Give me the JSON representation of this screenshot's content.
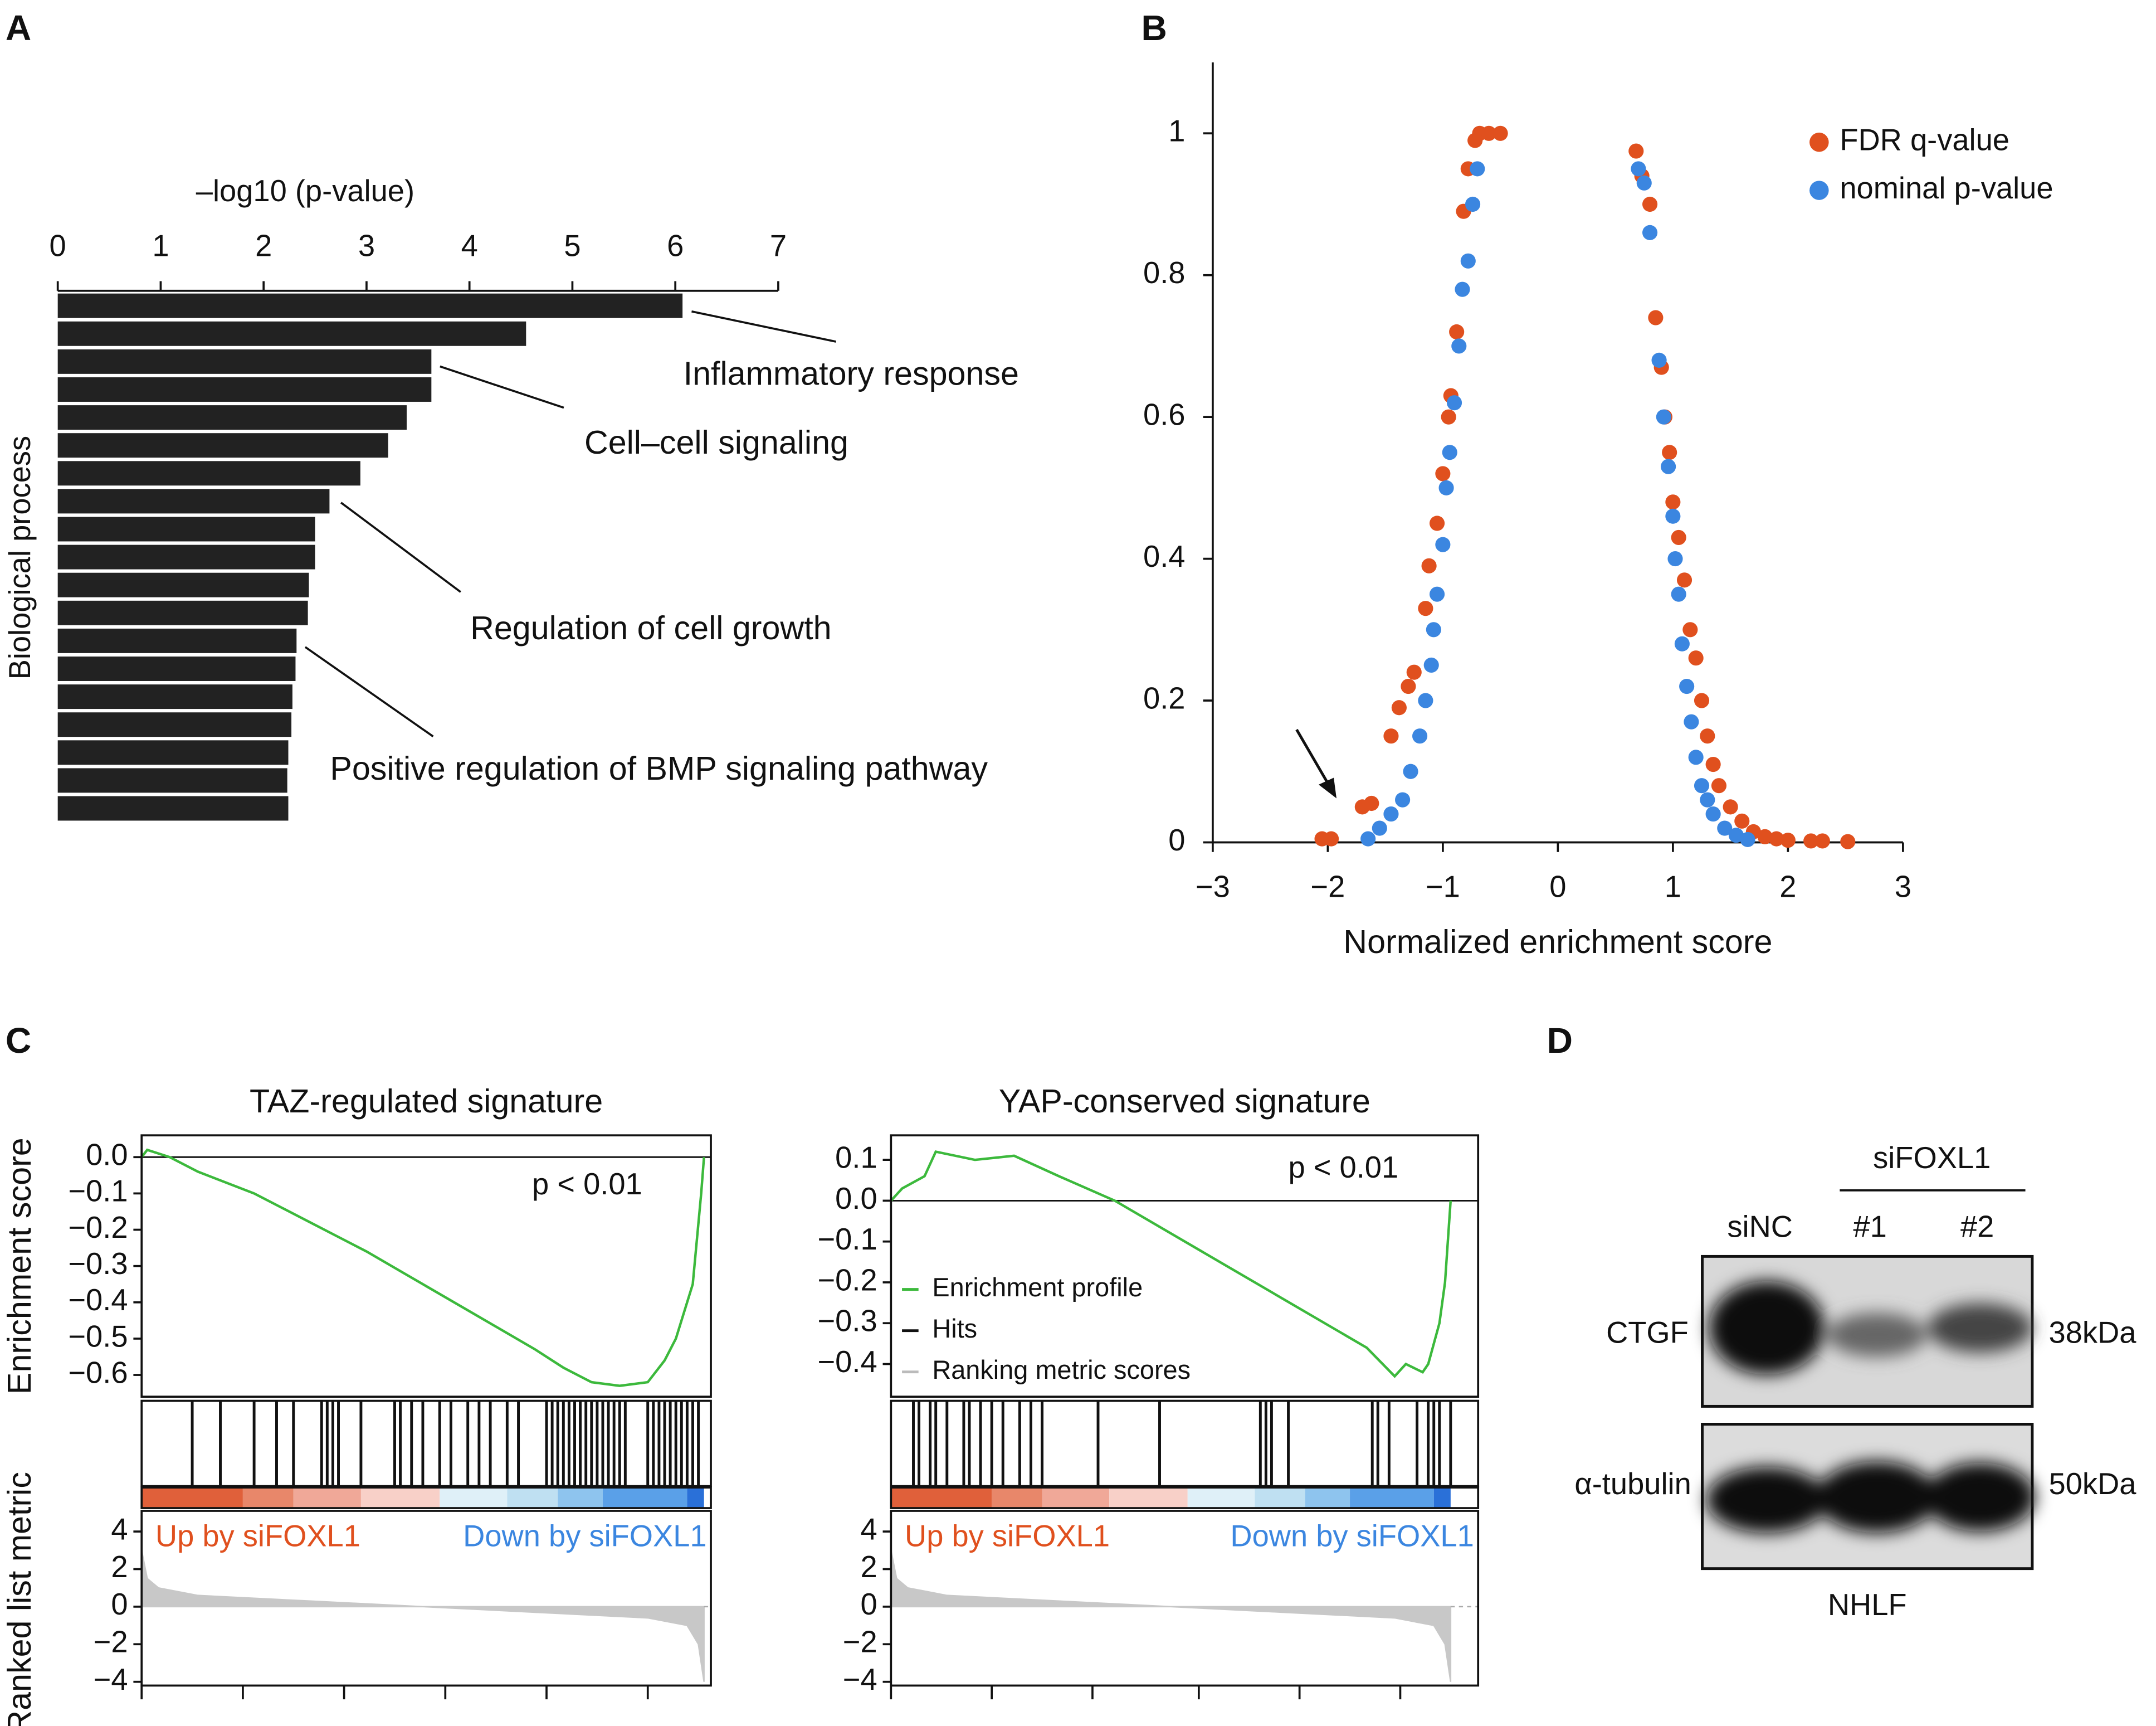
{
  "panel_labels": [
    "A",
    "B",
    "C",
    "D"
  ],
  "chart_data": [
    {
      "type": "bar",
      "orientation": "horizontal",
      "xlabel": "–log10 (p-value)",
      "ylabel": "Biological process",
      "color": "#222222",
      "categories": [
        null,
        null,
        null,
        null,
        null,
        null,
        null,
        null,
        null,
        null,
        null,
        null,
        null,
        null,
        null,
        null,
        null,
        null,
        null
      ],
      "values": [
        6.07,
        4.55,
        3.63,
        3.63,
        3.39,
        3.21,
        2.94,
        2.64,
        2.5,
        2.5,
        2.44,
        2.43,
        2.32,
        2.31,
        2.28,
        2.27,
        2.24,
        2.23,
        2.24
      ],
      "xlim": [
        0,
        7
      ],
      "xticks": [
        0,
        1,
        2,
        3,
        4,
        5,
        6,
        7
      ],
      "annotations": [
        "Inflammatory response",
        "Cell–cell signaling",
        "Regulation of cell growth",
        "Positive regulation of BMP signaling pathway"
      ]
    },
    {
      "type": "scatter",
      "xlabel": "Normalized enrichment score",
      "legend": "upper right",
      "xlim": [
        -3,
        3
      ],
      "xticks": [
        {
          "value": -3,
          "label": "−3"
        },
        {
          "value": -2,
          "label": "−2"
        },
        {
          "value": -1,
          "label": "−1"
        },
        0,
        1,
        2,
        3
      ],
      "ylim": [
        0,
        1.1
      ],
      "yticks": [
        0,
        0.2,
        0.4,
        0.6,
        0.8,
        1
      ],
      "series": [
        {
          "name": "FDR q-value",
          "color": "#e0501e",
          "x": [
            -2.05,
            -1.97,
            -1.7,
            -1.62,
            -1.45,
            -1.38,
            -1.3,
            -1.25,
            -1.15,
            -1.12,
            -1.05,
            -1.0,
            -0.95,
            -0.93,
            -0.88,
            -0.82,
            -0.78,
            -0.72,
            -0.68,
            -0.6,
            -0.5,
            0.68,
            0.73,
            0.8,
            0.85,
            0.9,
            0.93,
            0.97,
            1.0,
            1.05,
            1.1,
            1.15,
            1.2,
            1.25,
            1.3,
            1.35,
            1.4,
            1.5,
            1.6,
            1.7,
            1.8,
            1.9,
            2.0,
            2.2,
            2.3,
            2.52
          ],
          "values": [
            0.005,
            0.005,
            0.05,
            0.055,
            0.15,
            0.19,
            0.22,
            0.24,
            0.33,
            0.39,
            0.45,
            0.52,
            0.6,
            0.63,
            0.72,
            0.89,
            0.95,
            0.99,
            1.0,
            1.0,
            1.0,
            0.975,
            0.94,
            0.9,
            0.74,
            0.67,
            0.6,
            0.55,
            0.48,
            0.43,
            0.37,
            0.3,
            0.26,
            0.2,
            0.15,
            0.11,
            0.08,
            0.05,
            0.03,
            0.015,
            0.008,
            0.005,
            0.003,
            0.002,
            0.002,
            0.001
          ]
        },
        {
          "name": "nominal p-value",
          "color": "#3b86e0",
          "x": [
            -1.65,
            -1.55,
            -1.45,
            -1.35,
            -1.28,
            -1.2,
            -1.15,
            -1.1,
            -1.08,
            -1.05,
            -1.0,
            -0.97,
            -0.94,
            -0.9,
            -0.86,
            -0.83,
            -0.78,
            -0.74,
            -0.7,
            0.7,
            0.75,
            0.8,
            0.88,
            0.92,
            0.96,
            1.0,
            1.02,
            1.05,
            1.08,
            1.12,
            1.16,
            1.2,
            1.25,
            1.3,
            1.35,
            1.45,
            1.55,
            1.65
          ],
          "values": [
            0.005,
            0.02,
            0.04,
            0.06,
            0.1,
            0.15,
            0.2,
            0.25,
            0.3,
            0.35,
            0.42,
            0.5,
            0.55,
            0.62,
            0.7,
            0.78,
            0.82,
            0.9,
            0.95,
            0.95,
            0.93,
            0.86,
            0.68,
            0.6,
            0.53,
            0.46,
            0.4,
            0.35,
            0.28,
            0.22,
            0.17,
            0.12,
            0.08,
            0.06,
            0.04,
            0.02,
            0.01,
            0.004
          ]
        }
      ]
    },
    {
      "type": "gsea",
      "title": "TAZ-regulated signature",
      "ylabel": "Enrichment score",
      "metric_ylabel": "Ranked list metric",
      "annotation": "p < 0.01",
      "up_label": "Up by siFOXL1",
      "down_label": "Down by siFOXL1",
      "color": "#3cb93c",
      "xlim": [
        0,
        1.01
      ],
      "xticks": [
        0,
        0.18,
        0.36,
        0.54,
        0.72,
        0.9
      ],
      "ylim": [
        -0.66,
        0.06
      ],
      "yticks": [
        {
          "value": 0,
          "label": "0.0"
        },
        {
          "value": -0.1,
          "label": "−0.1"
        },
        {
          "value": -0.2,
          "label": "−0.2"
        },
        {
          "value": -0.3,
          "label": "−0.3"
        },
        {
          "value": -0.4,
          "label": "−0.4"
        },
        {
          "value": -0.5,
          "label": "−0.5"
        },
        {
          "value": -0.6,
          "label": "−0.6"
        }
      ],
      "x": [
        0,
        0.01,
        0.05,
        0.1,
        0.2,
        0.25,
        0.3,
        0.35,
        0.4,
        0.5,
        0.6,
        0.7,
        0.75,
        0.8,
        0.85,
        0.9,
        0.93,
        0.95,
        0.98,
        0.995,
        1.0
      ],
      "values": [
        0,
        0.02,
        0,
        -0.04,
        -0.1,
        -0.14,
        -0.18,
        -0.22,
        -0.26,
        -0.35,
        -0.44,
        -0.53,
        -0.58,
        -0.62,
        -0.63,
        -0.62,
        -0.56,
        -0.5,
        -0.35,
        -0.1,
        0
      ],
      "hits": [
        0.09,
        0.14,
        0.2,
        0.24,
        0.27,
        0.32,
        0.33,
        0.34,
        0.35,
        0.39,
        0.45,
        0.46,
        0.48,
        0.5,
        0.53,
        0.55,
        0.58,
        0.6,
        0.62,
        0.65,
        0.67,
        0.72,
        0.73,
        0.74,
        0.75,
        0.76,
        0.77,
        0.78,
        0.79,
        0.8,
        0.81,
        0.82,
        0.83,
        0.84,
        0.85,
        0.86,
        0.9,
        0.91,
        0.92,
        0.93,
        0.94,
        0.95,
        0.96,
        0.97,
        0.98,
        0.99
      ],
      "metric_ylim": [
        -4.2,
        5.1
      ],
      "metric_yticks": [
        4,
        2,
        0,
        {
          "value": -2,
          "label": "−2"
        },
        {
          "value": -4,
          "label": "−4"
        }
      ],
      "metric_x": [
        0,
        0.01,
        0.03,
        0.1,
        0.3,
        0.5,
        0.7,
        0.9,
        0.97,
        0.99,
        1.0
      ],
      "metric_values": [
        3,
        1.5,
        1,
        0.6,
        0.3,
        0,
        -0.3,
        -0.6,
        -1,
        -2,
        -4
      ]
    },
    {
      "type": "gsea",
      "title": "YAP-conserved signature",
      "annotation": "p < 0.01",
      "up_label": "Up by siFOXL1",
      "down_label": "Down by siFOXL1",
      "color": "#3cb93c",
      "legend": [
        "Enrichment profile",
        "Hits",
        "Ranking metric scores"
      ],
      "xlim": [
        0,
        1.05
      ],
      "xticks": [
        0,
        0.18,
        0.36,
        0.55,
        0.73,
        0.91
      ],
      "ylim": [
        -0.48,
        0.16
      ],
      "yticks": [
        0.1,
        {
          "value": 0,
          "label": "0.0"
        },
        {
          "value": -0.1,
          "label": "−0.1"
        },
        {
          "value": -0.2,
          "label": "−0.2"
        },
        {
          "value": -0.3,
          "label": "−0.3"
        },
        {
          "value": -0.4,
          "label": "−0.4"
        }
      ],
      "x": [
        0,
        0.02,
        0.06,
        0.08,
        0.15,
        0.22,
        0.3,
        0.4,
        0.5,
        0.6,
        0.7,
        0.8,
        0.85,
        0.9,
        0.92,
        0.95,
        0.96,
        0.98,
        0.99,
        1.0
      ],
      "values": [
        0,
        0.03,
        0.06,
        0.12,
        0.1,
        0.11,
        0.06,
        0,
        -0.08,
        -0.16,
        -0.24,
        -0.32,
        -0.36,
        -0.43,
        -0.4,
        -0.42,
        -0.4,
        -0.3,
        -0.2,
        0
      ],
      "hits": [
        0.04,
        0.05,
        0.07,
        0.08,
        0.1,
        0.13,
        0.14,
        0.16,
        0.18,
        0.2,
        0.23,
        0.25,
        0.27,
        0.37,
        0.48,
        0.66,
        0.67,
        0.68,
        0.71,
        0.86,
        0.87,
        0.89,
        0.94,
        0.96,
        0.97,
        0.98,
        1.0
      ],
      "metric_ylim": [
        -4.2,
        5.1
      ],
      "metric_yticks": [
        4,
        2,
        0,
        {
          "value": -2,
          "label": "−2"
        },
        {
          "value": -4,
          "label": "−4"
        }
      ],
      "metric_x": [
        0,
        0.01,
        0.03,
        0.1,
        0.3,
        0.5,
        0.7,
        0.9,
        0.97,
        0.99,
        1.0
      ],
      "metric_values": [
        3,
        1.5,
        1,
        0.6,
        0.3,
        0,
        -0.3,
        -0.6,
        -1,
        -2,
        -4
      ]
    }
  ],
  "blot": {
    "group": "siFOXL1",
    "lanes": [
      "siNC",
      "#1",
      "#2"
    ],
    "rows": [
      {
        "protein": "CTGF",
        "size": "38kDa"
      },
      {
        "protein": "α-tubulin",
        "size": "50kDa"
      }
    ],
    "cell_line": "NHLF"
  }
}
